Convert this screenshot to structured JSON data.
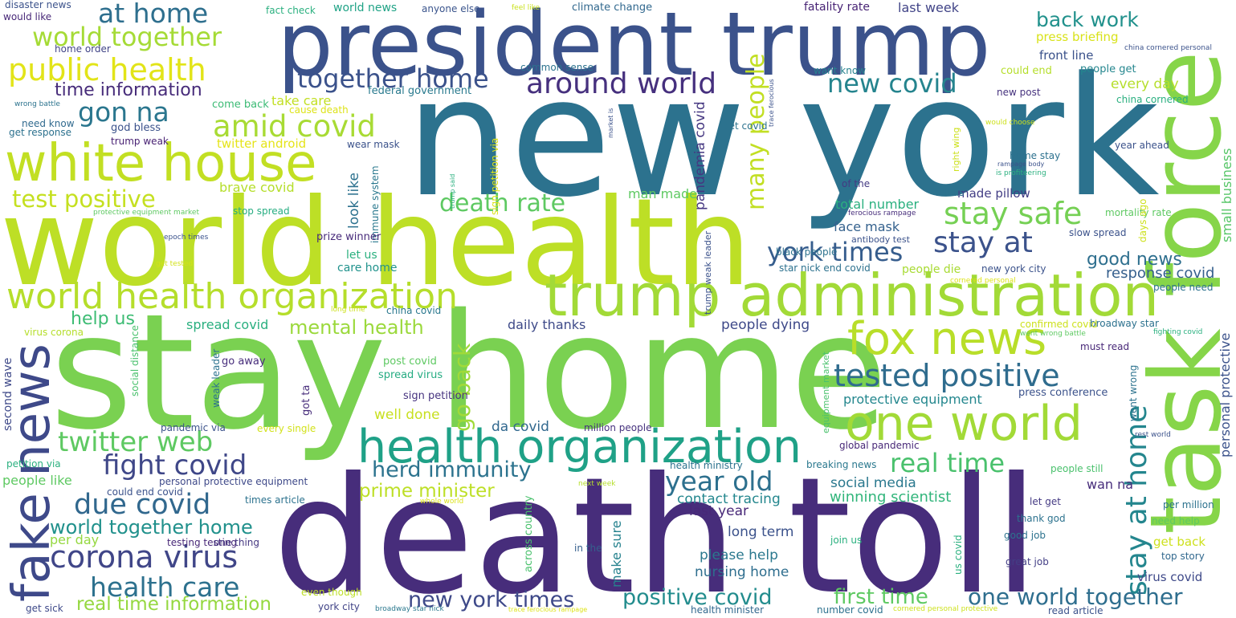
{
  "words": [
    {
      "text": "new york",
      "color": "#2c728e"
    },
    {
      "text": "world health",
      "color": "#bddf26"
    },
    {
      "text": "stay home",
      "color": "#7ad151"
    },
    {
      "text": "death toll",
      "color": "#472d7b"
    },
    {
      "text": "president trump",
      "color": "#3b528b"
    },
    {
      "text": "task force",
      "color": "#86d549"
    },
    {
      "text": "trump administration",
      "color": "#a2da37"
    },
    {
      "text": "white house",
      "color": "#c2df23"
    },
    {
      "text": "health organization",
      "color": "#1fa187"
    },
    {
      "text": "world health organization",
      "color": "#b5de2b"
    },
    {
      "text": "fake news",
      "color": "#3e4989"
    },
    {
      "text": "one world",
      "color": "#a2da37"
    },
    {
      "text": "fox news",
      "color": "#b8de29"
    },
    {
      "text": "tested positive",
      "color": "#2f6c8e"
    },
    {
      "text": "around world",
      "color": "#46307e"
    },
    {
      "text": "together home",
      "color": "#3b528b"
    },
    {
      "text": "amid covid",
      "color": "#a8db34"
    },
    {
      "text": "public health",
      "color": "#e2e418"
    },
    {
      "text": "world together",
      "color": "#a5db36"
    },
    {
      "text": "at home",
      "color": "#2e6f8e"
    },
    {
      "text": "gon na",
      "color": "#2a768e"
    },
    {
      "text": "test positive",
      "color": "#c5e021"
    },
    {
      "text": "twitter web",
      "color": "#5ec962"
    },
    {
      "text": "fight covid",
      "color": "#3f4788"
    },
    {
      "text": "corona virus",
      "color": "#404688"
    },
    {
      "text": "due covid",
      "color": "#31688e"
    },
    {
      "text": "health care",
      "color": "#2d718e"
    },
    {
      "text": "world together home",
      "color": "#21918c"
    },
    {
      "text": "real time information",
      "color": "#95d840"
    },
    {
      "text": "new york times",
      "color": "#3e4989"
    },
    {
      "text": "positive covid",
      "color": "#228c8d"
    },
    {
      "text": "first time",
      "color": "#5ec962"
    },
    {
      "text": "one world together",
      "color": "#2e6e8e"
    },
    {
      "text": "stay safe",
      "color": "#75d054"
    },
    {
      "text": "stay at",
      "color": "#3b528b"
    },
    {
      "text": "york times",
      "color": "#365d8d"
    },
    {
      "text": "new covid",
      "color": "#25848e"
    },
    {
      "text": "back work",
      "color": "#21918c"
    },
    {
      "text": "real time",
      "color": "#4ac16d"
    },
    {
      "text": "year old",
      "color": "#2d708e"
    },
    {
      "text": "herd immunity",
      "color": "#2c738e"
    },
    {
      "text": "death rate",
      "color": "#5ec962"
    },
    {
      "text": "many people",
      "color": "#c2df23"
    },
    {
      "text": "mental health",
      "color": "#9bd93c"
    },
    {
      "text": "prime minister",
      "color": "#bddf26"
    },
    {
      "text": "time information",
      "color": "#472c7a"
    },
    {
      "text": "help us",
      "color": "#3dbc74"
    },
    {
      "text": "stay at home",
      "color": "#24868e"
    },
    {
      "text": "go back",
      "color": "#a0da39"
    },
    {
      "text": "good news",
      "color": "#2e6f8e"
    },
    {
      "text": "response covid",
      "color": "#355f8d"
    },
    {
      "text": "small business",
      "color": "#56c667"
    },
    {
      "text": "personal protective",
      "color": "#3b528b"
    },
    {
      "text": "protective equipment",
      "color": "#24878e"
    },
    {
      "text": "social media",
      "color": "#2a788e"
    },
    {
      "text": "winning scientist",
      "color": "#31b57b"
    },
    {
      "text": "contact tracing",
      "color": "#24878e"
    },
    {
      "text": "please help",
      "color": "#2a788e"
    },
    {
      "text": "nursing home",
      "color": "#2e6e8e"
    },
    {
      "text": "long term",
      "color": "#3b528b"
    },
    {
      "text": "last year",
      "color": "#482878"
    },
    {
      "text": "make sure",
      "color": "#26828e"
    },
    {
      "text": "spread covid",
      "color": "#29af7f"
    },
    {
      "text": "daily thanks",
      "color": "#3e4a89"
    },
    {
      "text": "people dying",
      "color": "#3e4989"
    },
    {
      "text": "da covid",
      "color": "#31688e"
    },
    {
      "text": "well done",
      "color": "#c8e020"
    },
    {
      "text": "sign petition",
      "color": "#46337f"
    },
    {
      "text": "spread virus",
      "color": "#25ac82"
    },
    {
      "text": "post covid",
      "color": "#5ec962"
    },
    {
      "text": "pandemia covid",
      "color": "#453781"
    },
    {
      "text": "look like",
      "color": "#2c718e"
    },
    {
      "text": "take care",
      "color": "#c2df23"
    },
    {
      "text": "come back",
      "color": "#3cbb75"
    },
    {
      "text": "god bless",
      "color": "#3b528b"
    },
    {
      "text": "twitter android",
      "color": "#e5e419"
    },
    {
      "text": "brave covid",
      "color": "#b5de2b"
    },
    {
      "text": "man made",
      "color": "#5ec962"
    },
    {
      "text": "face mask",
      "color": "#34618d"
    },
    {
      "text": "total number",
      "color": "#2ab07f"
    },
    {
      "text": "made pillow",
      "color": "#433e85"
    },
    {
      "text": "every day",
      "color": "#b5de2b"
    },
    {
      "text": "people get",
      "color": "#24868e"
    },
    {
      "text": "could end",
      "color": "#b5de2b"
    },
    {
      "text": "press briefing",
      "color": "#d8e219"
    },
    {
      "text": "front line",
      "color": "#3b528b"
    },
    {
      "text": "last week",
      "color": "#414487"
    },
    {
      "text": "fatality rate",
      "color": "#482475"
    },
    {
      "text": "want know",
      "color": "#26828e"
    },
    {
      "text": "new post",
      "color": "#46327e"
    },
    {
      "text": "china cornered",
      "color": "#29af7f"
    },
    {
      "text": "climate change",
      "color": "#31688e"
    },
    {
      "text": "world news",
      "color": "#20a386"
    },
    {
      "text": "anyone else",
      "color": "#3a548c"
    },
    {
      "text": "fact check",
      "color": "#2ab07f"
    },
    {
      "text": "feel like",
      "color": "#cae11f"
    },
    {
      "text": "disaster news",
      "color": "#3b528b"
    },
    {
      "text": "would like",
      "color": "#482878"
    },
    {
      "text": "home order",
      "color": "#414487"
    },
    {
      "text": "wrong battle",
      "color": "#2c738e"
    },
    {
      "text": "need know",
      "color": "#306a8e"
    },
    {
      "text": "get response",
      "color": "#2c718e"
    },
    {
      "text": "trump weak",
      "color": "#482173"
    },
    {
      "text": "common sense",
      "color": "#2c728e"
    },
    {
      "text": "federal government",
      "color": "#297a8e"
    },
    {
      "text": "cause death",
      "color": "#dde318"
    },
    {
      "text": "wear mask",
      "color": "#3b528b"
    },
    {
      "text": "immune system",
      "color": "#2a788e"
    },
    {
      "text": "prize winner",
      "color": "#472a7a"
    },
    {
      "text": "let us",
      "color": "#2ab07f"
    },
    {
      "text": "care home",
      "color": "#20928c"
    },
    {
      "text": "china covid",
      "color": "#2a788e"
    },
    {
      "text": "stop spread",
      "color": "#26ad81"
    },
    {
      "text": "protective equipment market",
      "color": "#5ec962"
    },
    {
      "text": "epoch times",
      "color": "#3b528b"
    },
    {
      "text": "get tested",
      "color": "#d2e21b"
    },
    {
      "text": "long time",
      "color": "#cde11d"
    },
    {
      "text": "virus corona",
      "color": "#b5de2b"
    },
    {
      "text": "second wave",
      "color": "#3e4989"
    },
    {
      "text": "social distance",
      "color": "#4ac16d"
    },
    {
      "text": "go away",
      "color": "#472d7b"
    },
    {
      "text": "weak leader",
      "color": "#2c728e"
    },
    {
      "text": "got ta",
      "color": "#472d7b"
    },
    {
      "text": "pandemic via",
      "color": "#3b528b"
    },
    {
      "text": "every single",
      "color": "#d2e21b"
    },
    {
      "text": "million people",
      "color": "#46327e"
    },
    {
      "text": "people like",
      "color": "#5ec962"
    },
    {
      "text": "petition via",
      "color": "#2ab07f"
    },
    {
      "text": "personal protective equipment",
      "color": "#3e4989"
    },
    {
      "text": "could end covid",
      "color": "#3b528b"
    },
    {
      "text": "times article",
      "color": "#2c728e"
    },
    {
      "text": "per day",
      "color": "#95d840"
    },
    {
      "text": "testing testing",
      "color": "#482878"
    },
    {
      "text": "one thing",
      "color": "#453781"
    },
    {
      "text": "whole world",
      "color": "#dde318"
    },
    {
      "text": "across country",
      "color": "#4ac16d"
    },
    {
      "text": "even though",
      "color": "#bddf26"
    },
    {
      "text": "get sick",
      "color": "#3e4989"
    },
    {
      "text": "york city",
      "color": "#414487"
    },
    {
      "text": "broadway star nick",
      "color": "#2a788e"
    },
    {
      "text": "trace ferocious rampage",
      "color": "#dde318"
    },
    {
      "text": "health minister",
      "color": "#31688e"
    },
    {
      "text": "number covid",
      "color": "#2c718e"
    },
    {
      "text": "cornered personal protective",
      "color": "#cde11d"
    },
    {
      "text": "read article",
      "color": "#3b528b"
    },
    {
      "text": "in the",
      "color": "#355f8d"
    },
    {
      "text": "us covid",
      "color": "#2ab07f"
    },
    {
      "text": "join us",
      "color": "#2ab07f"
    },
    {
      "text": "good job",
      "color": "#2c728e"
    },
    {
      "text": "great job",
      "color": "#433e85"
    },
    {
      "text": "thank god",
      "color": "#2c728e"
    },
    {
      "text": "let get",
      "color": "#443a83"
    },
    {
      "text": "get back",
      "color": "#cde11d"
    },
    {
      "text": "top story",
      "color": "#31688e"
    },
    {
      "text": "need help",
      "color": "#5ec962"
    },
    {
      "text": "per million",
      "color": "#2c728e"
    },
    {
      "text": "virus covid",
      "color": "#3e4989"
    },
    {
      "text": "wan na",
      "color": "#472d7b"
    },
    {
      "text": "breaking news",
      "color": "#2a788e"
    },
    {
      "text": "health ministry",
      "color": "#2c728e"
    },
    {
      "text": "next week",
      "color": "#b5de2b"
    },
    {
      "text": "global pandemic",
      "color": "#482878"
    },
    {
      "text": "people still",
      "color": "#4ac16d"
    },
    {
      "text": "rest world",
      "color": "#3b528b"
    },
    {
      "text": "went wrong",
      "color": "#2c728e"
    },
    {
      "text": "press conference",
      "color": "#3b528b"
    },
    {
      "text": "must read",
      "color": "#482878"
    },
    {
      "text": "fighting covid",
      "color": "#2ab07f"
    },
    {
      "text": "broadway star",
      "color": "#2c718e"
    },
    {
      "text": "people need",
      "color": "#2c728e"
    },
    {
      "text": "confirmed covid",
      "color": "#cde11d"
    },
    {
      "text": "went wrong battle",
      "color": "#5ec962"
    },
    {
      "text": "equipment market",
      "color": "#4ac16d"
    },
    {
      "text": "trump weak leader",
      "color": "#3b528b"
    },
    {
      "text": "star nick end covid",
      "color": "#2c718e"
    },
    {
      "text": "people die",
      "color": "#a8db34"
    },
    {
      "text": "new york city",
      "color": "#3b528b"
    },
    {
      "text": "cornered personal",
      "color": "#dde318"
    },
    {
      "text": "black people",
      "color": "#2c728e"
    },
    {
      "text": "antibody test",
      "color": "#3b528b"
    },
    {
      "text": "slow spread",
      "color": "#3b528b"
    },
    {
      "text": "ferocious rampage",
      "color": "#472d7b"
    },
    {
      "text": "mortality rate",
      "color": "#5ec962"
    },
    {
      "text": "days ago",
      "color": "#cde11d"
    },
    {
      "text": "tell us",
      "color": "#2c718e"
    },
    {
      "text": "of the",
      "color": "#443a83"
    },
    {
      "text": "right wing",
      "color": "#cde11d"
    },
    {
      "text": "home stay",
      "color": "#2c718e"
    },
    {
      "text": "rampage body",
      "color": "#3b528b"
    },
    {
      "text": "is profiteering",
      "color": "#2ab07f"
    },
    {
      "text": "year ahead",
      "color": "#3b528b"
    },
    {
      "text": "would choose",
      "color": "#cde11d"
    },
    {
      "text": "get covid",
      "color": "#2c728e"
    },
    {
      "text": "trace ferocious",
      "color": "#3b528b"
    },
    {
      "text": "china cornered personal",
      "color": "#3b528b"
    },
    {
      "text": "market is",
      "color": "#3b528b"
    },
    {
      "text": "trump said",
      "color": "#2ab07f"
    },
    {
      "text": "sign petition via",
      "color": "#dde318"
    }
  ]
}
